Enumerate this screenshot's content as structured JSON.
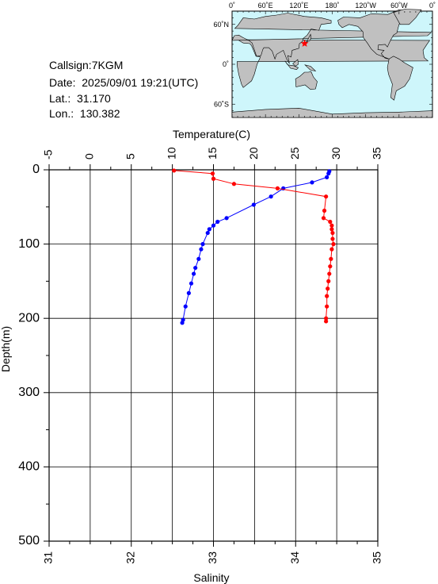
{
  "info": {
    "callsign": "Callsign:7KGM",
    "date": "Date:  2025/09/01 19:21(UTC)",
    "lat": "Lat.:  31.170",
    "lon": "Lon.:  130.382"
  },
  "map": {
    "top_labels": [
      "0˚",
      "60˚E",
      "120˚E",
      "180˚",
      "120˚W",
      "60˚W",
      "0˚"
    ],
    "left_labels": [
      "60˚N",
      "0˚",
      "60˚S"
    ],
    "ocean_color": "#cef6fb",
    "land_color": "#c0c0c0",
    "marker_color": "#ff0000",
    "marker_lon": 130.382,
    "marker_lat": 31.17
  },
  "chart_data": {
    "type": "line",
    "title": "",
    "top_axis": {
      "label": "Temperature(C)",
      "range": [
        -5,
        35
      ],
      "ticks": [
        "-5",
        "0",
        "5",
        "10",
        "15",
        "20",
        "25",
        "30",
        "35"
      ]
    },
    "bottom_axis": {
      "label": "Salinity",
      "range": [
        31,
        35
      ],
      "ticks": [
        "31",
        "32",
        "33",
        "34",
        "35"
      ]
    },
    "left_axis": {
      "label": "Depth(m)",
      "range": [
        0,
        500
      ],
      "inverted": true,
      "ticks": [
        "0",
        "100",
        "200",
        "300",
        "400",
        "500"
      ]
    },
    "grid": true,
    "series": [
      {
        "color": "#0000ff",
        "axis": "temperature",
        "points": [
          [
            29.1,
            2
          ],
          [
            29.0,
            5
          ],
          [
            28.8,
            10
          ],
          [
            27.0,
            17
          ],
          [
            23.5,
            25
          ],
          [
            22.0,
            36
          ],
          [
            19.9,
            47
          ],
          [
            16.6,
            65
          ],
          [
            15.5,
            70
          ],
          [
            15.0,
            75
          ],
          [
            14.5,
            80
          ],
          [
            14.3,
            85
          ],
          [
            13.7,
            100
          ],
          [
            13.5,
            107
          ],
          [
            13.2,
            120
          ],
          [
            12.8,
            132
          ],
          [
            12.6,
            140
          ],
          [
            12.3,
            153
          ],
          [
            12.0,
            166
          ],
          [
            11.6,
            184
          ],
          [
            11.3,
            202
          ],
          [
            11.2,
            206
          ]
        ]
      },
      {
        "color": "#ff0000",
        "axis": "salinity",
        "points": [
          [
            32.52,
            1
          ],
          [
            32.99,
            5
          ],
          [
            33.0,
            12
          ],
          [
            33.25,
            19
          ],
          [
            33.78,
            25
          ],
          [
            34.37,
            36
          ],
          [
            34.35,
            55
          ],
          [
            34.34,
            65
          ],
          [
            34.42,
            70
          ],
          [
            34.44,
            75
          ],
          [
            34.44,
            80
          ],
          [
            34.45,
            85
          ],
          [
            34.45,
            93
          ],
          [
            34.46,
            100
          ],
          [
            34.44,
            107
          ],
          [
            34.43,
            120
          ],
          [
            34.42,
            130
          ],
          [
            34.41,
            140
          ],
          [
            34.4,
            150
          ],
          [
            34.39,
            160
          ],
          [
            34.38,
            170
          ],
          [
            34.38,
            184
          ],
          [
            34.37,
            200
          ],
          [
            34.37,
            204
          ]
        ]
      }
    ]
  }
}
